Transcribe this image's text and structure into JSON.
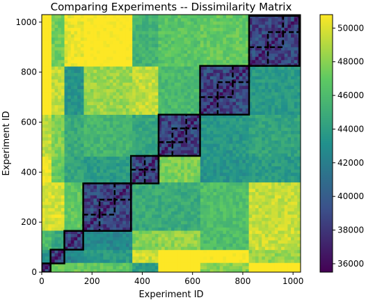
{
  "chart_data": {
    "type": "heatmap",
    "title": "Comparing Experiments -- Dissimilarity Matrix",
    "xlabel": "Experiment ID",
    "ylabel": "Experiment ID",
    "xlim": [
      0,
      1030
    ],
    "ylim": [
      0,
      1030
    ],
    "x_ticks": [
      0,
      200,
      400,
      600,
      800,
      1000
    ],
    "y_ticks": [
      0,
      200,
      400,
      600,
      800,
      1000
    ],
    "x_tick_labels": [
      "0",
      "200",
      "400",
      "600",
      "800",
      "1000"
    ],
    "y_tick_labels": [
      "0",
      "200",
      "400",
      "600",
      "800",
      "1000"
    ],
    "colorbar": {
      "min": 35500,
      "max": 50800,
      "ticks": [
        36000,
        38000,
        40000,
        42000,
        44000,
        46000,
        48000,
        50000
      ],
      "tick_labels": [
        "36000",
        "38000",
        "40000",
        "42000",
        "44000",
        "46000",
        "48000",
        "50000"
      ],
      "colormap": "viridis"
    },
    "colormap_stops": [
      "#440154",
      "#3b528b",
      "#21918c",
      "#5ec962",
      "#fde725"
    ],
    "clusters_solid": [
      [
        0,
        35
      ],
      [
        35,
        90
      ],
      [
        90,
        165
      ],
      [
        165,
        355
      ],
      [
        355,
        465
      ],
      [
        465,
        630
      ],
      [
        630,
        825
      ],
      [
        825,
        1025
      ]
    ],
    "clusters_dashed": [
      [
        165,
        230
      ],
      [
        230,
        290
      ],
      [
        290,
        355
      ],
      [
        355,
        410
      ],
      [
        410,
        465
      ],
      [
        465,
        520
      ],
      [
        520,
        575
      ],
      [
        575,
        630
      ],
      [
        630,
        700
      ],
      [
        700,
        760
      ],
      [
        760,
        825
      ],
      [
        825,
        900
      ],
      [
        900,
        960
      ],
      [
        960,
        1025
      ]
    ]
  }
}
